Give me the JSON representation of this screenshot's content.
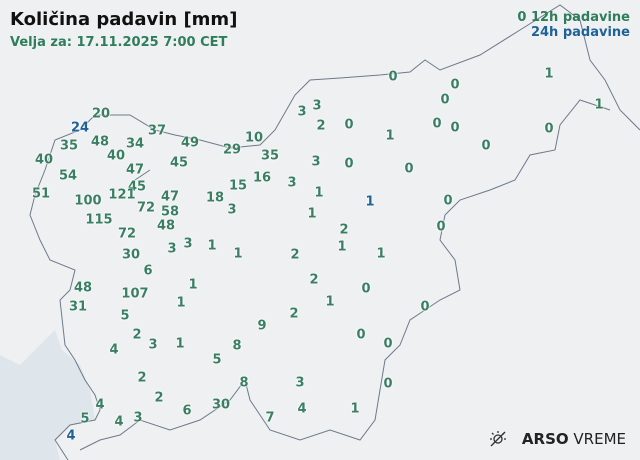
{
  "header": {
    "title": "Količina padavin [mm]",
    "valid_for": "Velja za: 17.11.2025 7:00 CET"
  },
  "legend": {
    "sample_value": "0",
    "label_12h": "12h padavine",
    "label_24h": "24h padavine",
    "color_12h": "#3a7f64",
    "color_24h": "#1f6396"
  },
  "brand": {
    "icon": "sun-weather-icon",
    "bold": "ARSO",
    "light": "VREME"
  },
  "stations": [
    {
      "value": "20",
      "type": "12h"
    },
    {
      "value": "24",
      "type": "24h"
    },
    {
      "value": "37",
      "type": "12h"
    },
    {
      "value": "35",
      "type": "12h"
    },
    {
      "value": "48",
      "type": "12h"
    },
    {
      "value": "34",
      "type": "12h"
    },
    {
      "value": "49",
      "type": "12h"
    },
    {
      "value": "10",
      "type": "12h"
    },
    {
      "value": "29",
      "type": "12h"
    },
    {
      "value": "35",
      "type": "12h"
    },
    {
      "value": "40",
      "type": "12h"
    },
    {
      "value": "40",
      "type": "12h"
    },
    {
      "value": "54",
      "type": "12h"
    },
    {
      "value": "47",
      "type": "12h"
    },
    {
      "value": "45",
      "type": "12h"
    },
    {
      "value": "45",
      "type": "12h"
    },
    {
      "value": "15",
      "type": "12h"
    },
    {
      "value": "16",
      "type": "12h"
    },
    {
      "value": "51",
      "type": "12h"
    },
    {
      "value": "121",
      "type": "12h"
    },
    {
      "value": "100",
      "type": "12h"
    },
    {
      "value": "18",
      "type": "12h"
    },
    {
      "value": "72",
      "type": "12h"
    },
    {
      "value": "47",
      "type": "12h"
    },
    {
      "value": "58",
      "type": "12h"
    },
    {
      "value": "3",
      "type": "12h"
    },
    {
      "value": "48",
      "type": "12h"
    },
    {
      "value": "115",
      "type": "12h"
    },
    {
      "value": "72",
      "type": "12h"
    },
    {
      "value": "3",
      "type": "12h"
    },
    {
      "value": "3",
      "type": "12h"
    },
    {
      "value": "1",
      "type": "12h"
    },
    {
      "value": "1",
      "type": "12h"
    },
    {
      "value": "30",
      "type": "12h"
    },
    {
      "value": "6",
      "type": "12h"
    },
    {
      "value": "1",
      "type": "12h"
    },
    {
      "value": "48",
      "type": "12h"
    },
    {
      "value": "107",
      "type": "12h"
    },
    {
      "value": "31",
      "type": "12h"
    },
    {
      "value": "1",
      "type": "12h"
    },
    {
      "value": "5",
      "type": "12h"
    },
    {
      "value": "9",
      "type": "12h"
    },
    {
      "value": "2",
      "type": "12h"
    },
    {
      "value": "3",
      "type": "12h"
    },
    {
      "value": "1",
      "type": "12h"
    },
    {
      "value": "4",
      "type": "12h"
    },
    {
      "value": "8",
      "type": "12h"
    },
    {
      "value": "5",
      "type": "12h"
    },
    {
      "value": "2",
      "type": "12h"
    },
    {
      "value": "8",
      "type": "12h"
    },
    {
      "value": "2",
      "type": "12h"
    },
    {
      "value": "30",
      "type": "12h"
    },
    {
      "value": "6",
      "type": "12h"
    },
    {
      "value": "4",
      "type": "12h"
    },
    {
      "value": "5",
      "type": "12h"
    },
    {
      "value": "4",
      "type": "12h"
    },
    {
      "value": "3",
      "type": "12h"
    },
    {
      "value": "7",
      "type": "12h"
    },
    {
      "value": "4",
      "type": "24h"
    },
    {
      "value": "0",
      "type": "12h"
    },
    {
      "value": "0",
      "type": "12h"
    },
    {
      "value": "1",
      "type": "12h"
    },
    {
      "value": "3",
      "type": "12h"
    },
    {
      "value": "3",
      "type": "12h"
    },
    {
      "value": "0",
      "type": "12h"
    },
    {
      "value": "1",
      "type": "12h"
    },
    {
      "value": "2",
      "type": "12h"
    },
    {
      "value": "0",
      "type": "12h"
    },
    {
      "value": "1",
      "type": "12h"
    },
    {
      "value": "0",
      "type": "12h"
    },
    {
      "value": "0",
      "type": "12h"
    },
    {
      "value": "0",
      "type": "12h"
    },
    {
      "value": "0",
      "type": "12h"
    },
    {
      "value": "3",
      "type": "12h"
    },
    {
      "value": "0",
      "type": "12h"
    },
    {
      "value": "0",
      "type": "12h"
    },
    {
      "value": "3",
      "type": "12h"
    },
    {
      "value": "1",
      "type": "12h"
    },
    {
      "value": "1",
      "type": "24h"
    },
    {
      "value": "0",
      "type": "12h"
    },
    {
      "value": "1",
      "type": "12h"
    },
    {
      "value": "2",
      "type": "12h"
    },
    {
      "value": "0",
      "type": "12h"
    },
    {
      "value": "2",
      "type": "12h"
    },
    {
      "value": "1",
      "type": "12h"
    },
    {
      "value": "1",
      "type": "12h"
    },
    {
      "value": "2",
      "type": "12h"
    },
    {
      "value": "0",
      "type": "12h"
    },
    {
      "value": "1",
      "type": "12h"
    },
    {
      "value": "2",
      "type": "12h"
    },
    {
      "value": "0",
      "type": "12h"
    },
    {
      "value": "0",
      "type": "12h"
    },
    {
      "value": "0",
      "type": "12h"
    },
    {
      "value": "3",
      "type": "12h"
    },
    {
      "value": "0",
      "type": "12h"
    },
    {
      "value": "4",
      "type": "12h"
    },
    {
      "value": "1",
      "type": "12h"
    }
  ]
}
